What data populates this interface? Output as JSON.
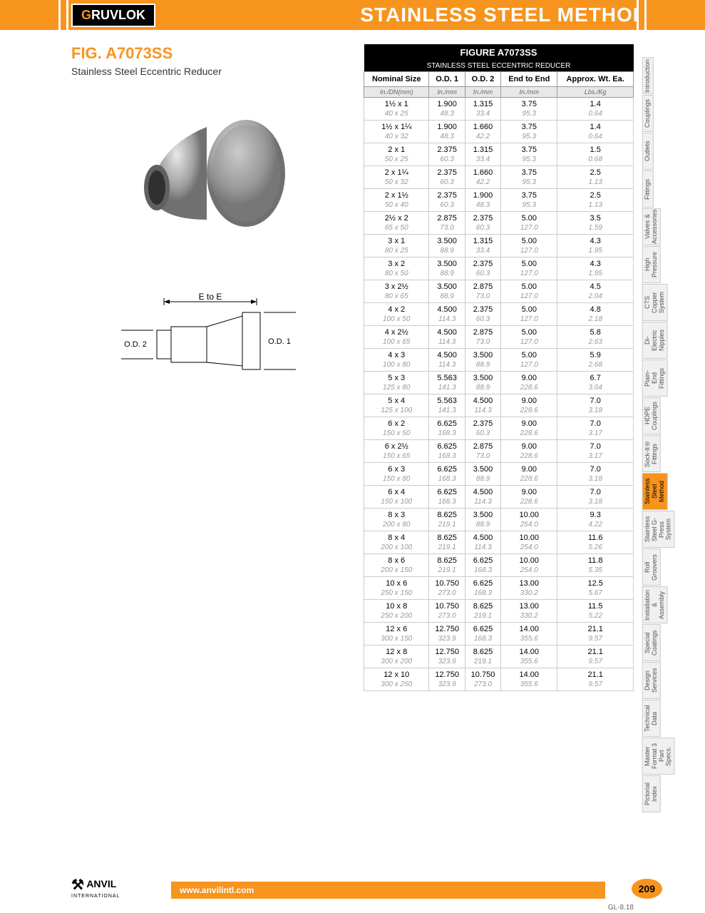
{
  "header": {
    "logo_text": "GRUVLOK",
    "title": "STAINLESS STEEL METHOD"
  },
  "figure": {
    "code": "FIG. A7073SS",
    "name": "Stainless Steel Eccentric Reducer"
  },
  "diagram": {
    "labels": {
      "ete": "E to E",
      "od1": "O.D. 1",
      "od2": "O.D. 2"
    }
  },
  "table": {
    "title": "FIGURE A7073SS",
    "subtitle": "STAINLESS STEEL ECCENTRIC REDUCER",
    "columns": [
      "Nominal Size",
      "O.D. 1",
      "O.D. 2",
      "End to End",
      "Approx. Wt. Ea."
    ],
    "units": [
      "In./DN(mm)",
      "In./mm",
      "In./mm",
      "In./mm",
      "Lbs./Kg"
    ],
    "rows": [
      {
        "p": [
          "1½ x 1",
          "1.900",
          "1.315",
          "3.75",
          "1.4"
        ],
        "s": [
          "40 x 25",
          "48.3",
          "33.4",
          "95.3",
          "0.64"
        ]
      },
      {
        "p": [
          "1½ x 1¼",
          "1.900",
          "1.660",
          "3.75",
          "1.4"
        ],
        "s": [
          "40 x 32",
          "48.3",
          "42.2",
          "95.3",
          "0.64"
        ]
      },
      {
        "p": [
          "2 x 1",
          "2.375",
          "1.315",
          "3.75",
          "1.5"
        ],
        "s": [
          "50 x 25",
          "60.3",
          "33.4",
          "95.3",
          "0.68"
        ]
      },
      {
        "p": [
          "2 x 1¼",
          "2.375",
          "1.660",
          "3.75",
          "2.5"
        ],
        "s": [
          "50 x 32",
          "60.3",
          "42.2",
          "95.3",
          "1.13"
        ]
      },
      {
        "p": [
          "2 x 1½",
          "2.375",
          "1.900",
          "3.75",
          "2.5"
        ],
        "s": [
          "50 x 40",
          "60.3",
          "48.3",
          "95.3",
          "1.13"
        ]
      },
      {
        "p": [
          "2½ x 2",
          "2.875",
          "2.375",
          "5.00",
          "3.5"
        ],
        "s": [
          "65 x 50",
          "73.0",
          "60.3",
          "127.0",
          "1.59"
        ]
      },
      {
        "p": [
          "3 x 1",
          "3.500",
          "1.315",
          "5.00",
          "4.3"
        ],
        "s": [
          "80 x 25",
          "88.9",
          "33.4",
          "127.0",
          "1.95"
        ]
      },
      {
        "p": [
          "3 x 2",
          "3.500",
          "2.375",
          "5.00",
          "4.3"
        ],
        "s": [
          "80 x 50",
          "88.9",
          "60.3",
          "127.0",
          "1.95"
        ]
      },
      {
        "p": [
          "3 x 2½",
          "3.500",
          "2.875",
          "5.00",
          "4.5"
        ],
        "s": [
          "80 x 65",
          "88.9",
          "73.0",
          "127.0",
          "2.04"
        ]
      },
      {
        "p": [
          "4 x 2",
          "4.500",
          "2.375",
          "5.00",
          "4.8"
        ],
        "s": [
          "100 x 50",
          "114.3",
          "60.3",
          "127.0",
          "2.18"
        ]
      },
      {
        "p": [
          "4 x 2½",
          "4.500",
          "2.875",
          "5.00",
          "5.8"
        ],
        "s": [
          "100 x 65",
          "114.3",
          "73.0",
          "127.0",
          "2.63"
        ]
      },
      {
        "p": [
          "4 x 3",
          "4.500",
          "3.500",
          "5.00",
          "5.9"
        ],
        "s": [
          "100 x 80",
          "114.3",
          "88.9",
          "127.0",
          "2.68"
        ]
      },
      {
        "p": [
          "5 x 3",
          "5.563",
          "3.500",
          "9.00",
          "6.7"
        ],
        "s": [
          "125 x 80",
          "141.3",
          "88.9",
          "228.6",
          "3.04"
        ]
      },
      {
        "p": [
          "5 x 4",
          "5.563",
          "4.500",
          "9.00",
          "7.0"
        ],
        "s": [
          "125 x 100",
          "141.3",
          "114.3",
          "228.6",
          "3.18"
        ]
      },
      {
        "p": [
          "6 x 2",
          "6.625",
          "2.375",
          "9.00",
          "7.0"
        ],
        "s": [
          "150 x 50",
          "168.3",
          "60.3",
          "228.6",
          "3.17"
        ]
      },
      {
        "p": [
          "6 x 2½",
          "6.625",
          "2.875",
          "9.00",
          "7.0"
        ],
        "s": [
          "150 x 65",
          "168.3",
          "73.0",
          "228.6",
          "3.17"
        ]
      },
      {
        "p": [
          "6 x 3",
          "6.625",
          "3.500",
          "9.00",
          "7.0"
        ],
        "s": [
          "150 x 80",
          "168.3",
          "88.9",
          "228.6",
          "3.18"
        ]
      },
      {
        "p": [
          "6 x 4",
          "6.625",
          "4.500",
          "9.00",
          "7.0"
        ],
        "s": [
          "150 x 100",
          "168.3",
          "114.3",
          "228.6",
          "3.18"
        ]
      },
      {
        "p": [
          "8 x 3",
          "8.625",
          "3.500",
          "10.00",
          "9.3"
        ],
        "s": [
          "200 x 80",
          "219.1",
          "88.9",
          "254.0",
          "4.22"
        ]
      },
      {
        "p": [
          "8 x 4",
          "8.625",
          "4.500",
          "10.00",
          "11.6"
        ],
        "s": [
          "200 x 100",
          "219.1",
          "114.3",
          "254.0",
          "5.26"
        ]
      },
      {
        "p": [
          "8 x 6",
          "8.625",
          "6.625",
          "10.00",
          "11.8"
        ],
        "s": [
          "200 x 150",
          "219.1",
          "168.3",
          "254.0",
          "5.35"
        ]
      },
      {
        "p": [
          "10 x 6",
          "10.750",
          "6.625",
          "13.00",
          "12.5"
        ],
        "s": [
          "250 x 150",
          "273.0",
          "168.3",
          "330.2",
          "5.67"
        ]
      },
      {
        "p": [
          "10 x 8",
          "10.750",
          "8.625",
          "13.00",
          "11.5"
        ],
        "s": [
          "250 x 200",
          "273.0",
          "219.1",
          "330.2",
          "5.22"
        ]
      },
      {
        "p": [
          "12 x 6",
          "12.750",
          "6.625",
          "14.00",
          "21.1"
        ],
        "s": [
          "300 x 150",
          "323.9",
          "168.3",
          "355.6",
          "9.57"
        ]
      },
      {
        "p": [
          "12 x 8",
          "12.750",
          "8.625",
          "14.00",
          "21.1"
        ],
        "s": [
          "300 x 200",
          "323.9",
          "219.1",
          "355.6",
          "9.57"
        ]
      },
      {
        "p": [
          "12 x 10",
          "12.750",
          "10.750",
          "14.00",
          "21.1"
        ],
        "s": [
          "300 x 250",
          "323.9",
          "273.0",
          "355.6",
          "9.57"
        ]
      }
    ]
  },
  "tabs": [
    "Introduction",
    "Couplings",
    "Outlets",
    "Fittings",
    "Valves & Accessories",
    "High Pressure",
    "CTS Copper System",
    "Di-Electric Nipples",
    "Plain-End Fittings",
    "HDPE Couplings",
    "Sock-It® Fittings",
    "Stainless Steel Method",
    "Stainless Steel G-Press System",
    "Roll Groovers",
    "Installation & Assembly",
    "Special Coatings",
    "Design Services",
    "Technical Data",
    "Master Format 3 Part Specs.",
    "Pictorial Index"
  ],
  "tabs_active_index": 11,
  "footer": {
    "url": "www.anvilintl.com",
    "logo": "ANVIL",
    "logo_sub": "INTERNATIONAL",
    "page": "209",
    "code": "GL-8.18"
  },
  "colors": {
    "accent": "#f7941e",
    "black": "#000",
    "grey": "#999"
  }
}
